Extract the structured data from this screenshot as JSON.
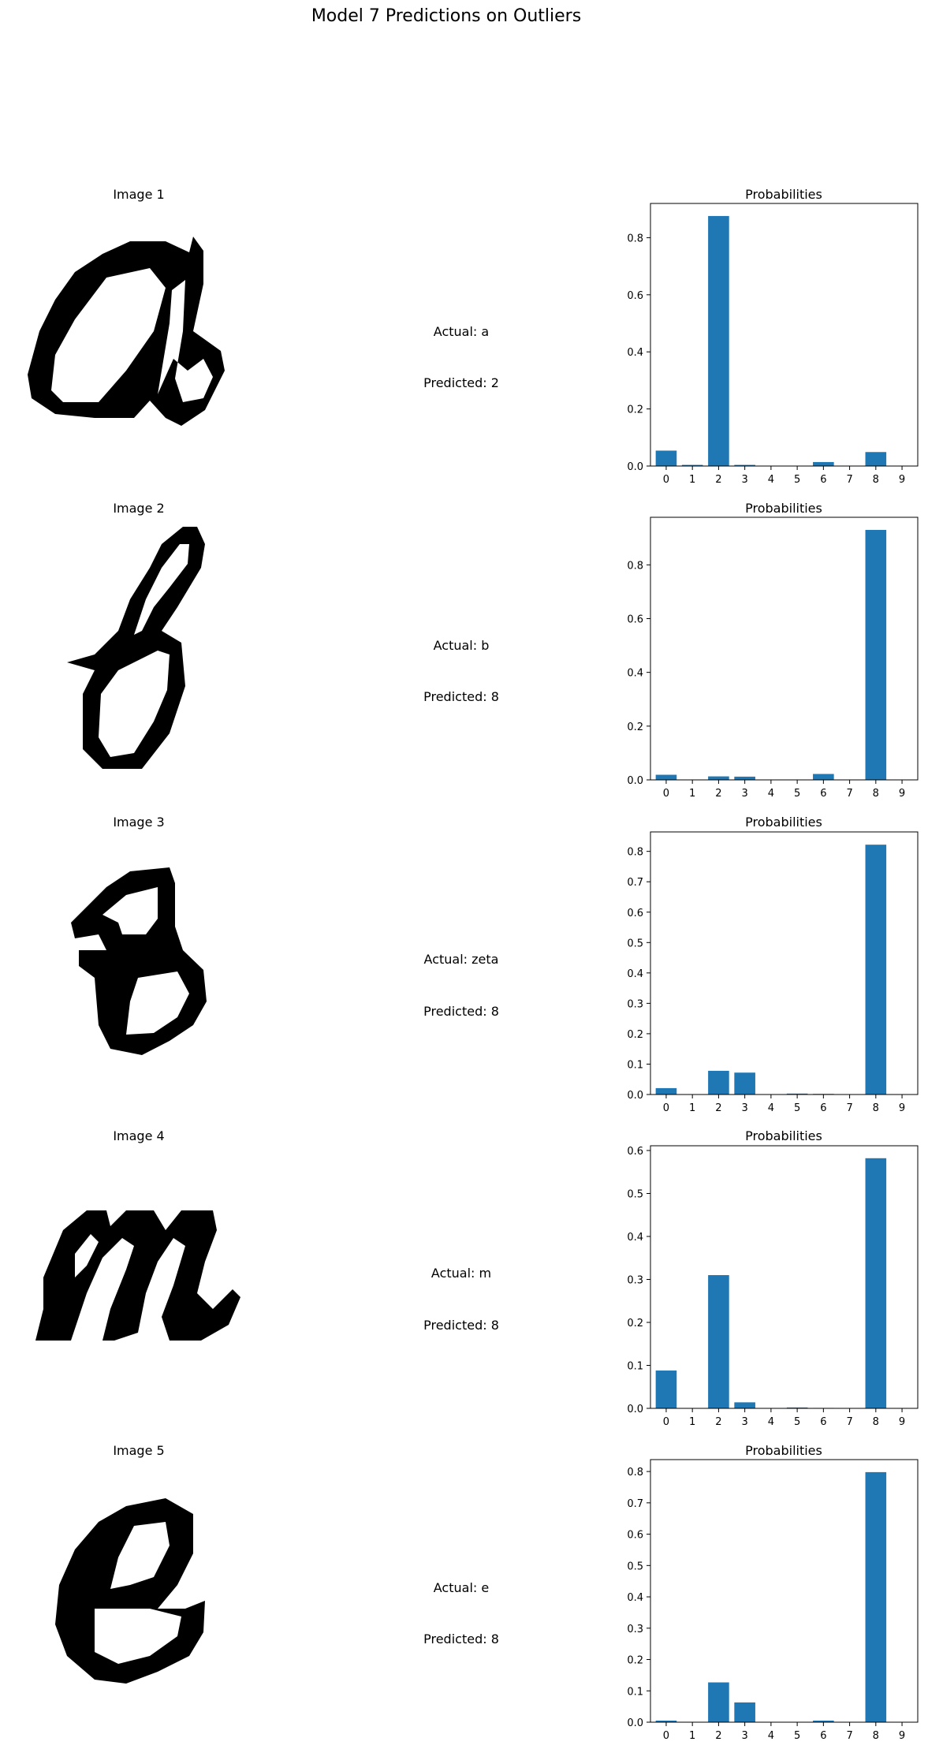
{
  "title": "Model 7 Predictions on Outliers",
  "colors": {
    "bar": "#1f77b4",
    "text": "#000000"
  },
  "rows": [
    {
      "image_title": "Image 1",
      "actual": "Actual: a",
      "predicted": "Predicted: 2",
      "chart_title": "Probabilities"
    },
    {
      "image_title": "Image 2",
      "actual": "Actual: b",
      "predicted": "Predicted: 8",
      "chart_title": "Probabilities"
    },
    {
      "image_title": "Image 3",
      "actual": "Actual: zeta",
      "predicted": "Predicted: 8",
      "chart_title": "Probabilities"
    },
    {
      "image_title": "Image 4",
      "actual": "Actual: m",
      "predicted": "Predicted: 8",
      "chart_title": "Probabilities"
    },
    {
      "image_title": "Image 5",
      "actual": "Actual: e",
      "predicted": "Predicted: 8",
      "chart_title": "Probabilities"
    }
  ],
  "chart_data": [
    {
      "type": "bar",
      "title": "Probabilities",
      "categories": [
        "0",
        "1",
        "2",
        "3",
        "4",
        "5",
        "6",
        "7",
        "8",
        "9"
      ],
      "values": [
        0.054,
        0.004,
        0.876,
        0.004,
        0.001,
        0.001,
        0.014,
        0.001,
        0.049,
        0.001
      ],
      "ylim": [
        0,
        0.92
      ],
      "yticks": [
        0.0,
        0.2,
        0.4,
        0.6,
        0.8
      ],
      "ytick_labels": [
        "0.0",
        "0.2",
        "0.4",
        "0.6",
        "0.8"
      ],
      "grid": false
    },
    {
      "type": "bar",
      "title": "Probabilities",
      "categories": [
        "0",
        "1",
        "2",
        "3",
        "4",
        "5",
        "6",
        "7",
        "8",
        "9"
      ],
      "values": [
        0.019,
        0.001,
        0.013,
        0.012,
        0.001,
        0.001,
        0.022,
        0.001,
        0.93,
        0.001
      ],
      "ylim": [
        0,
        0.977
      ],
      "yticks": [
        0.0,
        0.2,
        0.4,
        0.6,
        0.8
      ],
      "ytick_labels": [
        "0.0",
        "0.2",
        "0.4",
        "0.6",
        "0.8"
      ],
      "grid": false
    },
    {
      "type": "bar",
      "title": "Probabilities",
      "categories": [
        "0",
        "1",
        "2",
        "3",
        "4",
        "5",
        "6",
        "7",
        "8",
        "9"
      ],
      "values": [
        0.021,
        0.001,
        0.078,
        0.072,
        0.001,
        0.003,
        0.002,
        0.001,
        0.822,
        0.001
      ],
      "ylim": [
        0,
        0.864
      ],
      "yticks": [
        0.0,
        0.1,
        0.2,
        0.3,
        0.4,
        0.5,
        0.6,
        0.7,
        0.8
      ],
      "ytick_labels": [
        "0.0",
        "0.1",
        "0.2",
        "0.3",
        "0.4",
        "0.5",
        "0.6",
        "0.7",
        "0.8"
      ],
      "grid": false
    },
    {
      "type": "bar",
      "title": "Probabilities",
      "categories": [
        "0",
        "1",
        "2",
        "3",
        "4",
        "5",
        "6",
        "7",
        "8",
        "9"
      ],
      "values": [
        0.088,
        0.0,
        0.31,
        0.014,
        0.0,
        0.002,
        0.001,
        0.0,
        0.582,
        0.0
      ],
      "ylim": [
        0,
        0.611
      ],
      "yticks": [
        0.0,
        0.1,
        0.2,
        0.3,
        0.4,
        0.5,
        0.6
      ],
      "ytick_labels": [
        "0.0",
        "0.1",
        "0.2",
        "0.3",
        "0.4",
        "0.5",
        "0.6"
      ],
      "grid": false
    },
    {
      "type": "bar",
      "title": "Probabilities",
      "categories": [
        "0",
        "1",
        "2",
        "3",
        "4",
        "5",
        "6",
        "7",
        "8",
        "9"
      ],
      "values": [
        0.005,
        0.0,
        0.127,
        0.063,
        0.0,
        0.0,
        0.005,
        0.0,
        0.798,
        0.0
      ],
      "ylim": [
        0,
        0.838
      ],
      "yticks": [
        0.0,
        0.1,
        0.2,
        0.3,
        0.4,
        0.5,
        0.6,
        0.7,
        0.8
      ],
      "ytick_labels": [
        "0.0",
        "0.1",
        "0.2",
        "0.3",
        "0.4",
        "0.5",
        "0.6",
        "0.7",
        "0.8"
      ],
      "grid": false
    }
  ]
}
